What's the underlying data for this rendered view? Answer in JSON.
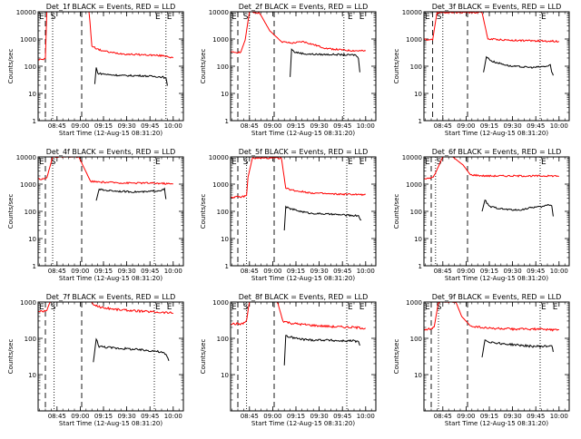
{
  "chart_data": [
    {
      "type": "line",
      "title": "Det_1f BLACK = Events, RED = LLD",
      "xlabel": "Start Time (12-Aug-15 08:31:20)",
      "ylabel": "Counts/sec",
      "yscale": "log",
      "ylim": [
        1,
        10000
      ],
      "xlim": [
        0,
        100
      ],
      "xtick_labels": [
        "08:45",
        "09:00",
        "09:15",
        "09:30",
        "09:45",
        "10:00"
      ],
      "ytick_labels": [
        "1",
        "10",
        "100",
        "1000",
        "10000"
      ],
      "annotations": [
        "E",
        "S",
        "E",
        "E"
      ],
      "series": [
        {
          "color": "#ff0000",
          "points": [
            [
              0,
              180
            ],
            [
              3,
              175
            ],
            [
              5,
              195
            ],
            [
              6,
              12000
            ],
            [
              35,
              12000
            ],
            [
              37,
              550
            ],
            [
              42,
              400
            ],
            [
              50,
              320
            ],
            [
              60,
              280
            ],
            [
              75,
              260
            ],
            [
              88,
              240
            ],
            [
              93,
              200
            ]
          ]
        },
        {
          "color": "#000000",
          "points": [
            [
              39,
              22
            ],
            [
              40,
              90
            ],
            [
              41,
              55
            ],
            [
              50,
              48
            ],
            [
              60,
              45
            ],
            [
              70,
              45
            ],
            [
              80,
              42
            ],
            [
              86,
              40
            ],
            [
              88,
              35
            ],
            [
              89,
              20
            ]
          ]
        }
      ]
    },
    {
      "type": "line",
      "title": "Det_2f BLACK = Events, RED = LLD",
      "xlabel": "Start Time (12-Aug-15 08:31:20)",
      "ylabel": "Counts/sec",
      "yscale": "log",
      "ylim": [
        1,
        10000
      ],
      "xlim": [
        0,
        100
      ],
      "xtick_labels": [
        "08:45",
        "09:00",
        "09:15",
        "09:30",
        "09:45",
        "10:00"
      ],
      "ytick_labels": [
        "1",
        "10",
        "100",
        "1000",
        "10000"
      ],
      "annotations": [
        "E",
        "S",
        "E",
        "E"
      ],
      "series": [
        {
          "color": "#ff0000",
          "points": [
            [
              0,
              320
            ],
            [
              7,
              330
            ],
            [
              10,
              900
            ],
            [
              13,
              10000
            ],
            [
              20,
              9000
            ],
            [
              27,
              2000
            ],
            [
              35,
              800
            ],
            [
              42,
              700
            ],
            [
              50,
              800
            ],
            [
              58,
              600
            ],
            [
              66,
              450
            ],
            [
              80,
              380
            ],
            [
              93,
              360
            ]
          ]
        },
        {
          "color": "#000000",
          "points": [
            [
              41,
              40
            ],
            [
              42,
              420
            ],
            [
              44,
              330
            ],
            [
              52,
              280
            ],
            [
              62,
              270
            ],
            [
              72,
              270
            ],
            [
              80,
              260
            ],
            [
              86,
              260
            ],
            [
              88,
              200
            ],
            [
              89,
              60
            ]
          ]
        }
      ]
    },
    {
      "type": "line",
      "title": "Det_3f BLACK = Events, RED = LLD",
      "xlabel": "Start Time (12-Aug-15 08:31:20)",
      "ylabel": "Counts/sec",
      "yscale": "log",
      "ylim": [
        1,
        10000
      ],
      "xlim": [
        0,
        100
      ],
      "xtick_labels": [
        "08:45",
        "09:00",
        "09:15",
        "09:30",
        "09:45",
        "10:00"
      ],
      "ytick_labels": [
        "1",
        "10",
        "100",
        "1000",
        "10000"
      ],
      "annotations": [
        "E",
        "S",
        "E"
      ],
      "series": [
        {
          "color": "#ff0000",
          "points": [
            [
              0,
              950
            ],
            [
              6,
              950
            ],
            [
              9,
              9500
            ],
            [
              40,
              9500
            ],
            [
              44,
              1000
            ],
            [
              60,
              900
            ],
            [
              80,
              850
            ],
            [
              93,
              820
            ]
          ]
        },
        {
          "color": "#000000",
          "points": [
            [
              41,
              60
            ],
            [
              43,
              220
            ],
            [
              47,
              150
            ],
            [
              60,
              100
            ],
            [
              75,
              90
            ],
            [
              85,
              100
            ],
            [
              87,
              110
            ],
            [
              88,
              60
            ],
            [
              89,
              45
            ]
          ]
        }
      ]
    },
    {
      "type": "line",
      "title": "Det_4f BLACK = Events, RED = LLD",
      "xlabel": "Start Time (12-Aug-15 08:31:20)",
      "ylabel": "Counts/sec",
      "yscale": "log",
      "ylim": [
        1,
        10000
      ],
      "xlim": [
        0,
        100
      ],
      "xtick_labels": [
        "08:45",
        "09:00",
        "09:15",
        "09:30",
        "09:45",
        "10:00"
      ],
      "ytick_labels": [
        "1",
        "10",
        "100",
        "1000",
        "10000"
      ],
      "annotations": [
        "E",
        "S",
        "E"
      ],
      "series": [
        {
          "color": "#ff0000",
          "points": [
            [
              0,
              1600
            ],
            [
              3,
              1500
            ],
            [
              6,
              1700
            ],
            [
              10,
              10000
            ],
            [
              28,
              10000
            ],
            [
              36,
              1300
            ],
            [
              40,
              1200
            ],
            [
              50,
              1150
            ],
            [
              60,
              1100
            ],
            [
              75,
              1100
            ],
            [
              88,
              1050
            ],
            [
              93,
              1000
            ]
          ]
        },
        {
          "color": "#000000",
          "points": [
            [
              40,
              250
            ],
            [
              42,
              650
            ],
            [
              45,
              600
            ],
            [
              55,
              550
            ],
            [
              65,
              520
            ],
            [
              75,
              520
            ],
            [
              85,
              600
            ],
            [
              87,
              650
            ],
            [
              88,
              280
            ]
          ]
        }
      ]
    },
    {
      "type": "line",
      "title": "Det_5f BLACK = Events, RED = LLD",
      "xlabel": "Start Time (12-Aug-15 08:31:20)",
      "ylabel": "Counts/sec",
      "yscale": "log",
      "ylim": [
        1,
        10000
      ],
      "xlim": [
        0,
        100
      ],
      "xtick_labels": [
        "08:45",
        "09:00",
        "09:15",
        "09:30",
        "09:45",
        "10:00"
      ],
      "ytick_labels": [
        "1",
        "10",
        "100",
        "1000",
        "10000"
      ],
      "annotations": [
        "E",
        "S",
        "E",
        "E"
      ],
      "series": [
        {
          "color": "#ff0000",
          "points": [
            [
              0,
              330
            ],
            [
              8,
              340
            ],
            [
              11,
              380
            ],
            [
              12,
              1800
            ],
            [
              15,
              9000
            ],
            [
              35,
              9000
            ],
            [
              38,
              700
            ],
            [
              44,
              580
            ],
            [
              55,
              480
            ],
            [
              70,
              430
            ],
            [
              85,
              420
            ],
            [
              93,
              400
            ]
          ]
        },
        {
          "color": "#000000",
          "points": [
            [
              37,
              20
            ],
            [
              38,
              150
            ],
            [
              40,
              130
            ],
            [
              48,
              100
            ],
            [
              55,
              85
            ],
            [
              65,
              80
            ],
            [
              75,
              75
            ],
            [
              84,
              70
            ],
            [
              88,
              70
            ],
            [
              90,
              45
            ]
          ]
        }
      ]
    },
    {
      "type": "line",
      "title": "Det_6f BLACK = Events, RED = LLD",
      "xlabel": "Start Time (12-Aug-15 08:31:20)",
      "ylabel": "Counts/sec",
      "yscale": "log",
      "ylim": [
        1,
        10000
      ],
      "xlim": [
        0,
        100
      ],
      "xtick_labels": [
        "08:45",
        "09:00",
        "09:15",
        "09:30",
        "09:45",
        "10:00"
      ],
      "ytick_labels": [
        "1",
        "10",
        "100",
        "1000",
        "10000"
      ],
      "annotations": [
        "E",
        "S",
        "E"
      ],
      "series": [
        {
          "color": "#ff0000",
          "points": [
            [
              0,
              1600
            ],
            [
              4,
              1600
            ],
            [
              7,
              2000
            ],
            [
              13,
              10000
            ],
            [
              18,
              12000
            ],
            [
              27,
              5000
            ],
            [
              32,
              2200
            ],
            [
              42,
              2000
            ],
            [
              60,
              2000
            ],
            [
              80,
              2000
            ],
            [
              93,
              2000
            ]
          ]
        },
        {
          "color": "#000000",
          "points": [
            [
              40,
              100
            ],
            [
              42,
              260
            ],
            [
              45,
              150
            ],
            [
              55,
              120
            ],
            [
              65,
              110
            ],
            [
              75,
              140
            ],
            [
              82,
              150
            ],
            [
              86,
              180
            ],
            [
              88,
              160
            ],
            [
              89,
              65
            ]
          ]
        }
      ]
    },
    {
      "type": "line",
      "title": "Det_7f BLACK = Events, RED = LLD",
      "xlabel": "Start Time (12-Aug-15 08:31:20)",
      "ylabel": "Counts/sec",
      "yscale": "log",
      "ylim": [
        1,
        1000
      ],
      "xlim": [
        0,
        100
      ],
      "xtick_labels": [
        "08:45",
        "09:00",
        "09:15",
        "09:30",
        "09:45",
        "10:00"
      ],
      "ytick_labels": [
        "10",
        "100",
        "1000"
      ],
      "annotations": [
        "E",
        "S",
        "E",
        "E"
      ],
      "series": [
        {
          "color": "#ff0000",
          "points": [
            [
              0,
              560
            ],
            [
              3,
              560
            ],
            [
              6,
              600
            ],
            [
              9,
              1200
            ],
            [
              34,
              1200
            ],
            [
              38,
              850
            ],
            [
              44,
              700
            ],
            [
              55,
              620
            ],
            [
              70,
              560
            ],
            [
              85,
              520
            ],
            [
              93,
              500
            ]
          ]
        },
        {
          "color": "#000000",
          "points": [
            [
              38,
              22
            ],
            [
              40,
              95
            ],
            [
              42,
              60
            ],
            [
              50,
              55
            ],
            [
              60,
              52
            ],
            [
              70,
              48
            ],
            [
              80,
              45
            ],
            [
              86,
              40
            ],
            [
              88,
              35
            ],
            [
              90,
              25
            ]
          ]
        }
      ]
    },
    {
      "type": "line",
      "title": "Det_8f BLACK = Events, RED = LLD",
      "xlabel": "Start Time (12-Aug-15 08:31:20)",
      "ylabel": "Counts/sec",
      "yscale": "log",
      "ylim": [
        1,
        1000
      ],
      "xlim": [
        0,
        100
      ],
      "xtick_labels": [
        "08:45",
        "09:00",
        "09:15",
        "09:30",
        "09:45",
        "10:00"
      ],
      "ytick_labels": [
        "10",
        "100",
        "1000"
      ],
      "annotations": [
        "E",
        "S",
        "E",
        "E"
      ],
      "series": [
        {
          "color": "#ff0000",
          "points": [
            [
              0,
              250
            ],
            [
              8,
              250
            ],
            [
              11,
              300
            ],
            [
              13,
              1100
            ],
            [
              32,
              1100
            ],
            [
              36,
              300
            ],
            [
              42,
              260
            ],
            [
              55,
              230
            ],
            [
              70,
              210
            ],
            [
              85,
              200
            ],
            [
              93,
              190
            ]
          ]
        },
        {
          "color": "#000000",
          "points": [
            [
              37,
              18
            ],
            [
              38,
              120
            ],
            [
              40,
              110
            ],
            [
              48,
              95
            ],
            [
              55,
              90
            ],
            [
              65,
              90
            ],
            [
              75,
              85
            ],
            [
              85,
              85
            ],
            [
              88,
              80
            ],
            [
              89,
              60
            ]
          ]
        }
      ]
    },
    {
      "type": "line",
      "title": "Det_9f BLACK = Events, RED = LLD",
      "xlabel": "Start Time (12-Aug-15 08:31:20)",
      "ylabel": "Counts/sec",
      "yscale": "log",
      "ylim": [
        1,
        1000
      ],
      "xlim": [
        0,
        100
      ],
      "xtick_labels": [
        "08:45",
        "09:00",
        "09:15",
        "09:30",
        "09:45",
        "10:00"
      ],
      "ytick_labels": [
        "10",
        "100",
        "1000"
      ],
      "annotations": [
        "E",
        "S",
        "E",
        "E"
      ],
      "series": [
        {
          "color": "#ff0000",
          "points": [
            [
              0,
              180
            ],
            [
              4,
              180
            ],
            [
              7,
              200
            ],
            [
              10,
              1000
            ],
            [
              22,
              1000
            ],
            [
              26,
              400
            ],
            [
              32,
              220
            ],
            [
              44,
              190
            ],
            [
              60,
              180
            ],
            [
              75,
              180
            ],
            [
              93,
              170
            ]
          ]
        },
        {
          "color": "#000000",
          "points": [
            [
              40,
              30
            ],
            [
              42,
              90
            ],
            [
              45,
              80
            ],
            [
              55,
              70
            ],
            [
              65,
              65
            ],
            [
              75,
              60
            ],
            [
              85,
              60
            ],
            [
              88,
              65
            ],
            [
              89,
              45
            ]
          ]
        }
      ]
    }
  ]
}
